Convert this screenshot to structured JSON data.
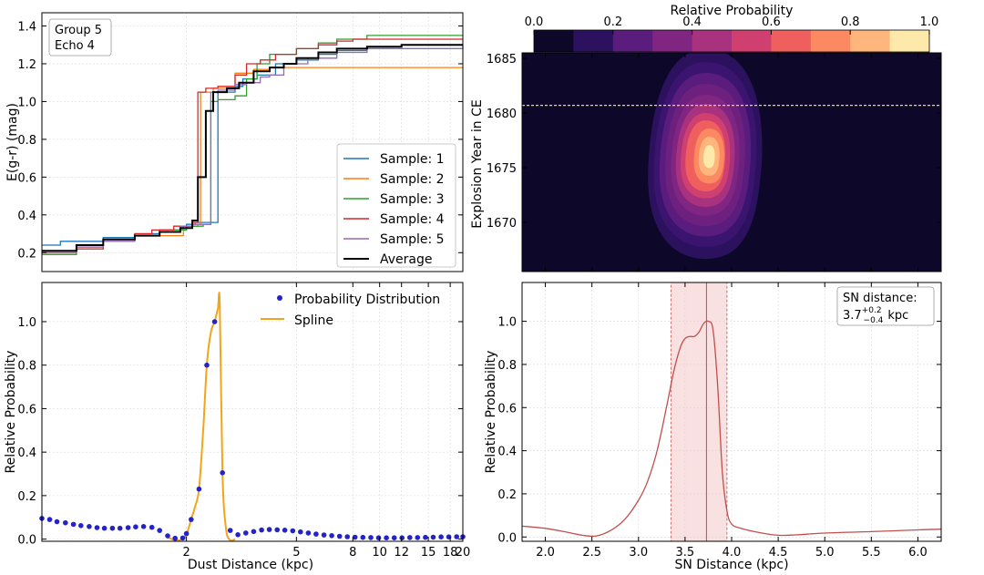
{
  "chart_data": [
    {
      "type": "line",
      "panel": "top-left",
      "annotation": [
        "Group 5",
        "Echo 4"
      ],
      "xlabel": "",
      "ylabel": "E(g-r) (mag)",
      "xscale": "log",
      "xlim": [
        0.6,
        20
      ],
      "ylim": [
        0.1,
        1.47
      ],
      "yticks": [
        0.2,
        0.4,
        0.6,
        0.8,
        1.0,
        1.2,
        1.4
      ],
      "ytick_labels": [
        "0.2",
        "0.4",
        "0.6",
        "0.8",
        "1.0",
        "1.2",
        "1.4"
      ],
      "grid": true,
      "legend_position": "bottom-right",
      "series": [
        {
          "name": "Sample: 1",
          "color": "#1f77b4",
          "x": [
            0.6,
            0.7,
            0.8,
            1.0,
            1.3,
            1.6,
            2.0,
            2.15,
            2.3,
            2.6,
            3.0,
            3.2,
            3.6,
            4.2,
            5.0,
            6.0,
            7.0,
            9.0,
            12.0,
            20.0
          ],
          "y": [
            0.24,
            0.26,
            0.26,
            0.28,
            0.3,
            0.32,
            0.35,
            0.36,
            0.36,
            1.05,
            1.08,
            1.12,
            1.14,
            1.2,
            1.22,
            1.25,
            1.27,
            1.28,
            1.28,
            1.28
          ]
        },
        {
          "name": "Sample: 2",
          "color": "#ff7f0e",
          "x": [
            0.6,
            0.8,
            1.0,
            1.3,
            1.7,
            1.95,
            2.2,
            2.25,
            2.5,
            3.0,
            3.5,
            4.0,
            5.0,
            6.0,
            8.0,
            20.0
          ],
          "y": [
            0.19,
            0.22,
            0.27,
            0.29,
            0.29,
            0.34,
            0.35,
            1.05,
            1.07,
            1.15,
            1.17,
            1.18,
            1.18,
            1.18,
            1.18,
            1.18
          ]
        },
        {
          "name": "Sample: 3",
          "color": "#2ca02c",
          "x": [
            0.6,
            0.8,
            1.0,
            1.3,
            1.6,
            2.0,
            2.3,
            2.45,
            2.6,
            3.0,
            3.3,
            3.6,
            4.0,
            5.0,
            6.0,
            7.0,
            9.0,
            20.0
          ],
          "y": [
            0.19,
            0.23,
            0.27,
            0.29,
            0.32,
            0.34,
            0.35,
            1.0,
            1.01,
            1.03,
            1.12,
            1.2,
            1.25,
            1.28,
            1.31,
            1.33,
            1.35,
            1.35
          ]
        },
        {
          "name": "Sample: 4",
          "color": "#d62728",
          "x": [
            0.6,
            0.8,
            1.0,
            1.3,
            1.5,
            1.8,
            2.1,
            2.2,
            2.35,
            2.6,
            3.0,
            3.3,
            3.7,
            4.2,
            5.0,
            6.0,
            7.0,
            8.0,
            20.0
          ],
          "y": [
            0.2,
            0.22,
            0.27,
            0.3,
            0.32,
            0.34,
            0.36,
            1.05,
            1.07,
            1.08,
            1.14,
            1.2,
            1.22,
            1.25,
            1.28,
            1.3,
            1.32,
            1.33,
            1.33
          ]
        },
        {
          "name": "Sample: 5",
          "color": "#9467bd",
          "x": [
            0.6,
            0.8,
            1.0,
            1.3,
            1.6,
            1.9,
            2.1,
            2.3,
            2.45,
            2.6,
            3.0,
            3.3,
            3.7,
            4.0,
            4.5,
            5.5,
            7.0,
            9.0,
            20.0
          ],
          "y": [
            0.2,
            0.23,
            0.26,
            0.29,
            0.31,
            0.34,
            0.35,
            0.35,
            1.05,
            1.06,
            1.09,
            1.1,
            1.13,
            1.14,
            1.2,
            1.23,
            1.26,
            1.28,
            1.3
          ]
        },
        {
          "name": "Average",
          "color": "#000000",
          "x": [
            0.6,
            0.8,
            1.0,
            1.3,
            1.6,
            1.9,
            2.1,
            2.2,
            2.35,
            2.5,
            2.8,
            3.1,
            3.5,
            4.0,
            4.5,
            5.0,
            6.0,
            7.0,
            9.0,
            12.0,
            20.0
          ],
          "y": [
            0.21,
            0.24,
            0.27,
            0.29,
            0.31,
            0.33,
            0.37,
            0.6,
            0.95,
            1.05,
            1.07,
            1.1,
            1.16,
            1.18,
            1.2,
            1.23,
            1.26,
            1.28,
            1.29,
            1.3,
            1.3
          ]
        }
      ]
    },
    {
      "type": "heatmap",
      "panel": "top-right",
      "xlabel": "",
      "ylabel": "Explosion Year in CE",
      "xlim": [
        1.75,
        6.25
      ],
      "ylim": [
        1665.5,
        1685.5
      ],
      "yticks": [
        1670,
        1675,
        1680,
        1685
      ],
      "ytick_labels": [
        "1670",
        "1675",
        "1680",
        "1685"
      ],
      "background_color": "#0d0829",
      "reference_line": {
        "y": 1680.7,
        "color": "#ffd84a",
        "style": "dashed"
      },
      "peak": {
        "x": 3.72,
        "y": 1676.0
      },
      "colorbar": {
        "label": "Relative Probability",
        "position": "top",
        "ticks": [
          0.0,
          0.2,
          0.4,
          0.6,
          0.8,
          1.0
        ],
        "tick_labels": [
          "0.0",
          "0.2",
          "0.4",
          "0.6",
          "0.8",
          "1.0"
        ],
        "colors": [
          "#0d0829",
          "#2c115f",
          "#5a1d7d",
          "#802582",
          "#a8327d",
          "#cf4070",
          "#ef5f5e",
          "#fc8961",
          "#feb67c",
          "#fde9a9"
        ]
      }
    },
    {
      "type": "scatter",
      "panel": "bottom-left",
      "xlabel": "Dust Distance (kpc)",
      "ylabel": "Relative Probability",
      "xscale": "log",
      "xlim": [
        0.6,
        20
      ],
      "ylim": [
        -0.01,
        1.18
      ],
      "xticks": [
        2,
        5,
        8,
        10,
        12,
        15,
        18,
        20
      ],
      "xtick_labels": [
        "2",
        "5",
        "8",
        "10",
        "12",
        "15",
        "18",
        "20"
      ],
      "yticks": [
        0.0,
        0.2,
        0.4,
        0.6,
        0.8,
        1.0
      ],
      "ytick_labels": [
        "0.0",
        "0.2",
        "0.4",
        "0.6",
        "0.8",
        "1.0"
      ],
      "grid": true,
      "legend_position": "top-right",
      "series": [
        {
          "name": "Probability Distribution",
          "color": "#2323c8",
          "marker": "circle",
          "x": [
            0.6,
            0.64,
            0.68,
            0.73,
            0.78,
            0.83,
            0.89,
            0.95,
            1.01,
            1.08,
            1.15,
            1.23,
            1.31,
            1.4,
            1.5,
            1.6,
            1.71,
            1.82,
            1.94,
            2.0,
            2.08,
            2.22,
            2.37,
            2.53,
            2.7,
            2.88,
            3.07,
            3.28,
            3.5,
            3.74,
            3.99,
            4.26,
            4.54,
            4.85,
            5.17,
            5.52,
            5.89,
            6.29,
            6.71,
            7.16,
            7.64,
            8.15,
            8.7,
            9.29,
            9.91,
            10.58,
            11.29,
            12.05,
            12.86,
            13.72,
            14.64,
            15.63,
            16.68,
            17.8,
            19.0,
            20.0
          ],
          "y": [
            0.095,
            0.09,
            0.08,
            0.075,
            0.068,
            0.062,
            0.058,
            0.053,
            0.05,
            0.05,
            0.05,
            0.053,
            0.056,
            0.058,
            0.054,
            0.04,
            0.015,
            0.004,
            0.005,
            0.025,
            0.09,
            0.23,
            0.8,
            1.0,
            0.305,
            0.04,
            0.02,
            0.028,
            0.035,
            0.042,
            0.044,
            0.043,
            0.041,
            0.038,
            0.033,
            0.028,
            0.023,
            0.019,
            0.016,
            0.013,
            0.011,
            0.009,
            0.008,
            0.007,
            0.006,
            0.006,
            0.006,
            0.006,
            0.007,
            0.007,
            0.008,
            0.009,
            0.01,
            0.01,
            0.011,
            0.011
          ]
        },
        {
          "name": "Spline",
          "color": "#f2a51a",
          "type": "line",
          "x": [
            1.7,
            1.82,
            1.94,
            2.0,
            2.08,
            2.15,
            2.22,
            2.3,
            2.37,
            2.45,
            2.53,
            2.6,
            2.64,
            2.7,
            2.78,
            2.88,
            3.0
          ],
          "y": [
            0.01,
            -0.005,
            0.0,
            0.02,
            0.09,
            0.15,
            0.23,
            0.5,
            0.8,
            0.95,
            1.0,
            1.06,
            1.08,
            0.305,
            0.05,
            -0.005,
            0.0
          ]
        }
      ]
    },
    {
      "type": "line",
      "panel": "bottom-right",
      "xlabel": "SN Distance (kpc)",
      "ylabel": "Relative Probability",
      "xlim": [
        1.75,
        6.25
      ],
      "ylim": [
        -0.02,
        1.18
      ],
      "xticks": [
        2.0,
        2.5,
        3.0,
        3.5,
        4.0,
        4.5,
        5.0,
        5.5,
        6.0
      ],
      "xtick_labels": [
        "2.0",
        "2.5",
        "3.0",
        "3.5",
        "4.0",
        "4.5",
        "5.0",
        "5.5",
        "6.0"
      ],
      "yticks": [
        0.0,
        0.2,
        0.4,
        0.6,
        0.8,
        1.0
      ],
      "ytick_labels": [
        "0.0",
        "0.2",
        "0.4",
        "0.6",
        "0.8",
        "1.0"
      ],
      "grid": true,
      "annotation": {
        "line1": "SN distance:",
        "value": "3.7",
        "upper": "+0.2",
        "lower": "−0.4",
        "unit": "kpc"
      },
      "shaded_range": [
        3.35,
        3.95
      ],
      "median": 3.73,
      "series": [
        {
          "name": "",
          "color": "#c0504d",
          "x": [
            1.75,
            2.0,
            2.2,
            2.4,
            2.55,
            2.7,
            2.85,
            3.0,
            3.1,
            3.2,
            3.3,
            3.38,
            3.45,
            3.5,
            3.55,
            3.6,
            3.65,
            3.7,
            3.75,
            3.8,
            3.85,
            3.9,
            3.95,
            4.0,
            4.1,
            4.3,
            4.5,
            4.7,
            5.0,
            5.5,
            6.0,
            6.25
          ],
          "y": [
            0.05,
            0.04,
            0.025,
            0.008,
            0.005,
            0.03,
            0.08,
            0.17,
            0.26,
            0.4,
            0.6,
            0.77,
            0.88,
            0.92,
            0.93,
            0.93,
            0.95,
            0.99,
            1.0,
            0.96,
            0.7,
            0.3,
            0.12,
            0.06,
            0.04,
            0.02,
            0.008,
            0.01,
            0.018,
            0.025,
            0.033,
            0.036
          ]
        }
      ]
    }
  ]
}
